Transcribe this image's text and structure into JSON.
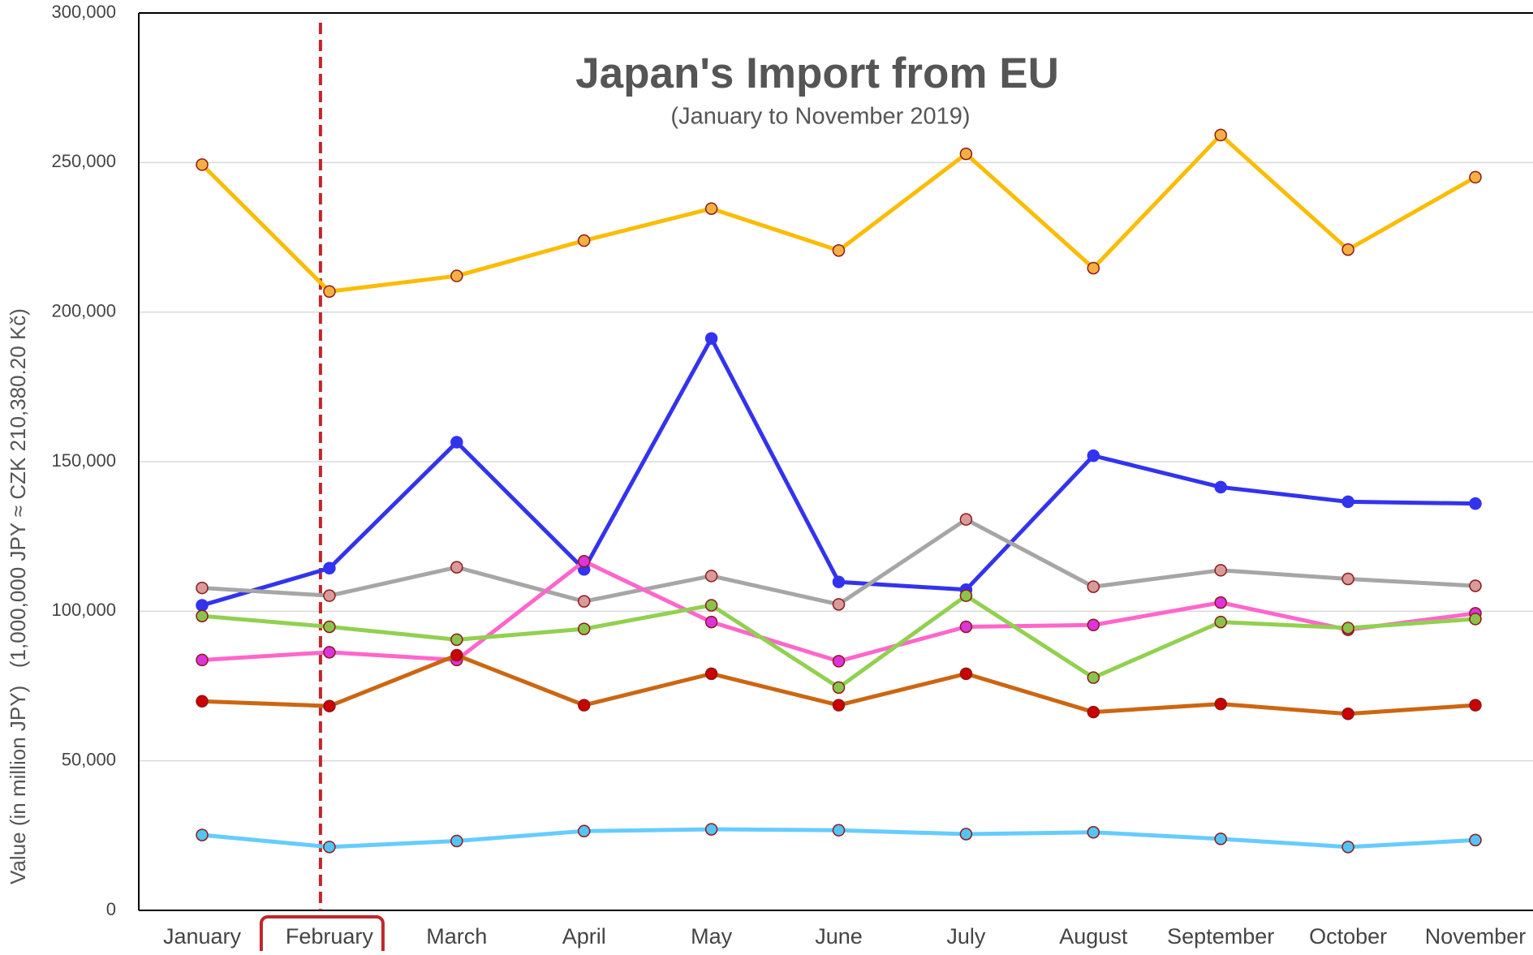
{
  "chart_data": {
    "type": "line",
    "title": "Japan's Import from EU",
    "subtitle": "(January to November 2019)",
    "ylabel": "Value (in million JPY)   (1,000,000 JPY ≈ CZK 210,380.20 Kč)",
    "categories": [
      "January",
      "February",
      "March",
      "April",
      "May",
      "June",
      "July",
      "August",
      "September",
      "October",
      "November"
    ],
    "highlight_index": 1,
    "highlight_color": "#c0262b",
    "ylim": [
      0,
      300000
    ],
    "yticks": [
      {
        "value": 0,
        "label": "0"
      },
      {
        "value": 50000,
        "label": "50,000"
      },
      {
        "value": 100000,
        "label": "100,000"
      },
      {
        "value": 150000,
        "label": "150,000"
      },
      {
        "value": 200000,
        "label": "200,000"
      },
      {
        "value": 250000,
        "label": "250,000"
      },
      {
        "value": 300000,
        "label": "300,000"
      }
    ],
    "grid": true,
    "series": [
      {
        "color": "#fbbc04",
        "marker_color": "#f6b042",
        "values": [
          249300,
          206900,
          212100,
          223900,
          234600,
          220600,
          252900,
          214700,
          259200,
          220900,
          245100
        ]
      },
      {
        "color": "#3333ee",
        "marker_color": "#3333ee",
        "values": [
          102000,
          114400,
          156500,
          114000,
          191200,
          109800,
          107200,
          152000,
          141500,
          136600,
          136000
        ]
      },
      {
        "color": "#a6a6a6",
        "marker_color": "#d99a9a",
        "values": [
          107800,
          105200,
          114700,
          103300,
          111800,
          102300,
          130700,
          108200,
          113700,
          110800,
          108500
        ]
      },
      {
        "color": "#ff66cc",
        "marker_color": "#dd33dd",
        "values": [
          83700,
          86300,
          83700,
          116700,
          96400,
          83300,
          94800,
          95400,
          102900,
          93800,
          99300
        ]
      },
      {
        "color": "#92d050",
        "marker_color": "#8bc34a",
        "values": [
          98400,
          94800,
          90500,
          94100,
          102000,
          74500,
          105200,
          77800,
          96400,
          94400,
          97400
        ]
      },
      {
        "color": "#cc6611",
        "marker_color": "#cc0000",
        "values": [
          69900,
          68300,
          85300,
          68600,
          79100,
          68600,
          79100,
          66300,
          69000,
          65700,
          68600
        ]
      },
      {
        "color": "#66ccff",
        "marker_color": "#55c4f5",
        "values": [
          25200,
          21200,
          23200,
          26500,
          27100,
          26800,
          25500,
          26100,
          23900,
          21200,
          23500
        ]
      }
    ]
  }
}
